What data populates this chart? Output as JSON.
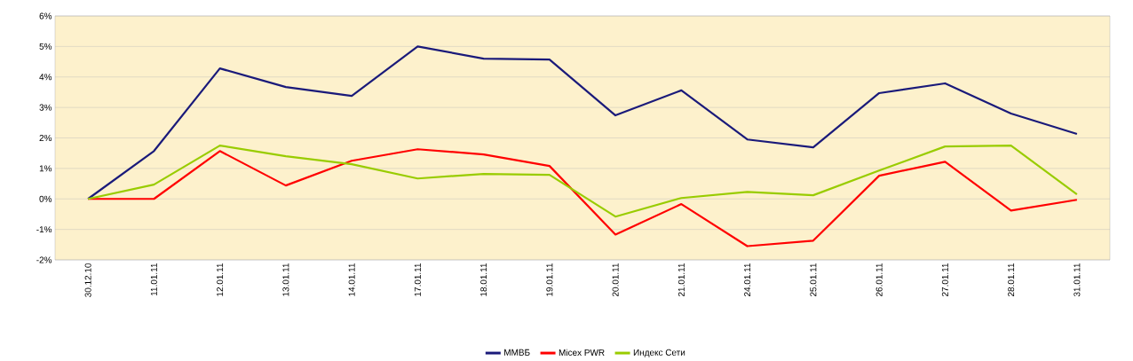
{
  "chart_data": {
    "type": "line",
    "categories": [
      "30.12.10",
      "11.01.11",
      "12.01.11",
      "13.01.11",
      "14.01.11",
      "17.01.11",
      "18.01.11",
      "19.01.11",
      "20.01.11",
      "21.01.11",
      "24.01.11",
      "25.01.11",
      "26.01.11",
      "27.01.11",
      "28.01.11",
      "31.01.11"
    ],
    "series": [
      {
        "name": "ММВБ",
        "color": "#1a1a7a",
        "values": [
          0,
          1.57,
          4.28,
          3.67,
          3.38,
          5.0,
          4.6,
          4.57,
          2.74,
          3.56,
          1.95,
          1.69,
          3.47,
          3.79,
          2.8,
          2.13
        ]
      },
      {
        "name": "Micex PWR",
        "color": "#ff0000",
        "values": [
          0,
          0,
          1.57,
          0.44,
          1.25,
          1.63,
          1.46,
          1.08,
          -1.17,
          -0.17,
          -1.55,
          -1.37,
          0.76,
          1.22,
          -0.38,
          -0.03
        ]
      },
      {
        "name": "Индекс Сети",
        "color": "#99cc00",
        "values": [
          0,
          0.47,
          1.75,
          1.4,
          1.14,
          0.67,
          0.82,
          0.79,
          -0.58,
          0.03,
          0.23,
          0.12,
          0.93,
          1.72,
          1.75,
          0.15
        ]
      }
    ],
    "ylim": [
      -2,
      6
    ],
    "yticks": [
      {
        "value": -2,
        "label": "-2%"
      },
      {
        "value": -1,
        "label": "-1%"
      },
      {
        "value": 0,
        "label": "0%"
      },
      {
        "value": 1,
        "label": "1%"
      },
      {
        "value": 2,
        "label": "2%"
      },
      {
        "value": 3,
        "label": "3%"
      },
      {
        "value": 4,
        "label": "4%"
      },
      {
        "value": 5,
        "label": "5%"
      },
      {
        "value": 6,
        "label": "6%"
      }
    ],
    "grid": "y",
    "legend": "bottom",
    "marker": "none",
    "line_style": "solid"
  }
}
